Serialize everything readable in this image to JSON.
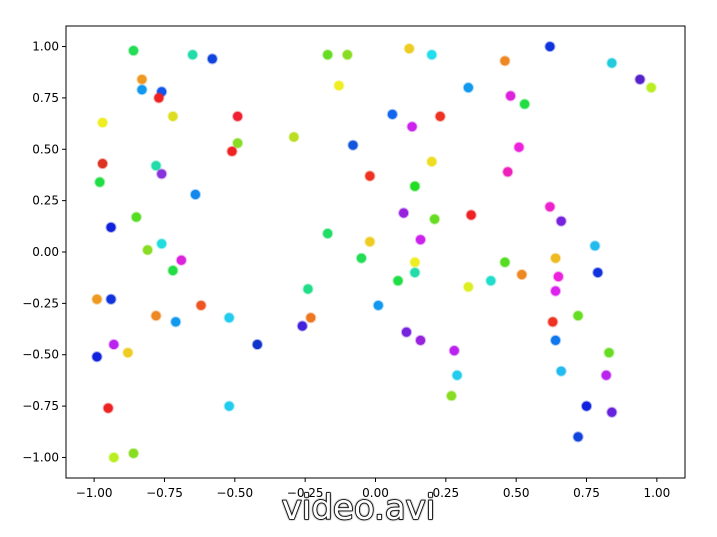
{
  "caption": "video.avi",
  "chart_data": {
    "type": "scatter",
    "title": "",
    "xlabel": "",
    "ylabel": "",
    "xlim": [
      -1.1,
      1.1
    ],
    "ylim": [
      -1.1,
      1.1
    ],
    "xticks": [
      "−1.00",
      "−0.75",
      "−0.50",
      "−0.25",
      "0.00",
      "0.25",
      "0.50",
      "0.75",
      "1.00"
    ],
    "yticks": [
      "−1.00",
      "−0.75",
      "−0.50",
      "−0.25",
      "0.00",
      "0.25",
      "0.50",
      "0.75",
      "1.00"
    ],
    "grid": false,
    "colormap": "hsv",
    "points": [
      {
        "x": -0.86,
        "y": 0.98,
        "color": "#22dd55"
      },
      {
        "x": -0.65,
        "y": 0.96,
        "color": "#22ddaa"
      },
      {
        "x": -0.58,
        "y": 0.94,
        "color": "#1144dd"
      },
      {
        "x": -0.83,
        "y": 0.84,
        "color": "#ee9922"
      },
      {
        "x": -0.83,
        "y": 0.79,
        "color": "#1199ee"
      },
      {
        "x": -0.76,
        "y": 0.78,
        "color": "#1155ee"
      },
      {
        "x": -0.77,
        "y": 0.75,
        "color": "#ee2222"
      },
      {
        "x": -0.97,
        "y": 0.63,
        "color": "#eeee22"
      },
      {
        "x": -0.72,
        "y": 0.66,
        "color": "#dddd22"
      },
      {
        "x": -0.49,
        "y": 0.66,
        "color": "#ee2233"
      },
      {
        "x": -0.49,
        "y": 0.53,
        "color": "#88dd22"
      },
      {
        "x": -0.51,
        "y": 0.49,
        "color": "#ee2222"
      },
      {
        "x": -0.97,
        "y": 0.43,
        "color": "#dd3322"
      },
      {
        "x": -0.78,
        "y": 0.42,
        "color": "#22ddaa"
      },
      {
        "x": -0.76,
        "y": 0.38,
        "color": "#8833dd"
      },
      {
        "x": -0.98,
        "y": 0.34,
        "color": "#22dd44"
      },
      {
        "x": -0.64,
        "y": 0.28,
        "color": "#1188ee"
      },
      {
        "x": -0.85,
        "y": 0.17,
        "color": "#55dd22"
      },
      {
        "x": -0.94,
        "y": 0.12,
        "color": "#1122dd"
      },
      {
        "x": -0.81,
        "y": 0.01,
        "color": "#88dd22"
      },
      {
        "x": -0.76,
        "y": 0.04,
        "color": "#22dddd"
      },
      {
        "x": -0.69,
        "y": -0.04,
        "color": "#dd22dd"
      },
      {
        "x": -0.72,
        "y": -0.09,
        "color": "#22dd44"
      },
      {
        "x": -0.99,
        "y": -0.23,
        "color": "#ee9922"
      },
      {
        "x": -0.94,
        "y": -0.23,
        "color": "#1133dd"
      },
      {
        "x": -0.62,
        "y": -0.26,
        "color": "#ee5522"
      },
      {
        "x": -0.78,
        "y": -0.31,
        "color": "#ee8822"
      },
      {
        "x": -0.71,
        "y": -0.34,
        "color": "#1199ee"
      },
      {
        "x": -0.52,
        "y": -0.32,
        "color": "#22ccee"
      },
      {
        "x": -0.93,
        "y": -0.45,
        "color": "#bb22ee"
      },
      {
        "x": -0.88,
        "y": -0.49,
        "color": "#eecc22"
      },
      {
        "x": -0.99,
        "y": -0.51,
        "color": "#1122dd"
      },
      {
        "x": -0.42,
        "y": -0.45,
        "color": "#1133cc"
      },
      {
        "x": -0.95,
        "y": -0.76,
        "color": "#ee2222"
      },
      {
        "x": -0.52,
        "y": -0.75,
        "color": "#22ccee"
      },
      {
        "x": -0.93,
        "y": -1.0,
        "color": "#bbee22"
      },
      {
        "x": -0.86,
        "y": -0.98,
        "color": "#88dd22"
      },
      {
        "x": -0.17,
        "y": 0.96,
        "color": "#66dd22"
      },
      {
        "x": -0.1,
        "y": 0.96,
        "color": "#88dd22"
      },
      {
        "x": -0.13,
        "y": 0.81,
        "color": "#eeee22"
      },
      {
        "x": -0.29,
        "y": 0.56,
        "color": "#bbdd22"
      },
      {
        "x": -0.08,
        "y": 0.52,
        "color": "#1155dd"
      },
      {
        "x": -0.02,
        "y": 0.37,
        "color": "#ee3322"
      },
      {
        "x": -0.17,
        "y": 0.09,
        "color": "#22dd66"
      },
      {
        "x": -0.02,
        "y": 0.05,
        "color": "#eecc22"
      },
      {
        "x": -0.05,
        "y": -0.03,
        "color": "#22dd55"
      },
      {
        "x": -0.24,
        "y": -0.18,
        "color": "#22dd88"
      },
      {
        "x": -0.23,
        "y": -0.32,
        "color": "#ee7722"
      },
      {
        "x": -0.26,
        "y": -0.36,
        "color": "#4422dd"
      },
      {
        "x": 0.01,
        "y": -0.26,
        "color": "#1199ee"
      },
      {
        "x": 0.12,
        "y": 0.99,
        "color": "#eecc22"
      },
      {
        "x": 0.2,
        "y": 0.96,
        "color": "#22ddee"
      },
      {
        "x": 0.33,
        "y": 0.8,
        "color": "#1199ee"
      },
      {
        "x": 0.46,
        "y": 0.93,
        "color": "#ee8822"
      },
      {
        "x": 0.62,
        "y": 1.0,
        "color": "#1133dd"
      },
      {
        "x": 0.84,
        "y": 0.92,
        "color": "#22ccdd"
      },
      {
        "x": 0.94,
        "y": 0.84,
        "color": "#5522cc"
      },
      {
        "x": 0.98,
        "y": 0.8,
        "color": "#bbee22"
      },
      {
        "x": 0.48,
        "y": 0.76,
        "color": "#dd22dd"
      },
      {
        "x": 0.53,
        "y": 0.72,
        "color": "#22dd44"
      },
      {
        "x": 0.06,
        "y": 0.67,
        "color": "#1166ee"
      },
      {
        "x": 0.23,
        "y": 0.66,
        "color": "#ee3322"
      },
      {
        "x": 0.13,
        "y": 0.61,
        "color": "#cc22ee"
      },
      {
        "x": 0.51,
        "y": 0.51,
        "color": "#ee22dd"
      },
      {
        "x": 0.2,
        "y": 0.44,
        "color": "#eedd22"
      },
      {
        "x": 0.47,
        "y": 0.39,
        "color": "#ee22bb"
      },
      {
        "x": 0.14,
        "y": 0.32,
        "color": "#22dd22"
      },
      {
        "x": 0.1,
        "y": 0.19,
        "color": "#9922dd"
      },
      {
        "x": 0.21,
        "y": 0.16,
        "color": "#66dd22"
      },
      {
        "x": 0.34,
        "y": 0.18,
        "color": "#ee2222"
      },
      {
        "x": 0.62,
        "y": 0.22,
        "color": "#ee22cc"
      },
      {
        "x": 0.66,
        "y": 0.15,
        "color": "#7722dd"
      },
      {
        "x": 0.16,
        "y": 0.06,
        "color": "#cc22ee"
      },
      {
        "x": 0.78,
        "y": 0.03,
        "color": "#22bbee"
      },
      {
        "x": 0.14,
        "y": -0.05,
        "color": "#eeee22"
      },
      {
        "x": 0.46,
        "y": -0.05,
        "color": "#55dd22"
      },
      {
        "x": 0.14,
        "y": -0.1,
        "color": "#22ddaa"
      },
      {
        "x": 0.64,
        "y": -0.03,
        "color": "#eebb22"
      },
      {
        "x": 0.08,
        "y": -0.14,
        "color": "#22dd44"
      },
      {
        "x": 0.52,
        "y": -0.11,
        "color": "#ee8822"
      },
      {
        "x": 0.65,
        "y": -0.12,
        "color": "#ee22dd"
      },
      {
        "x": 0.79,
        "y": -0.1,
        "color": "#1133dd"
      },
      {
        "x": 0.41,
        "y": -0.14,
        "color": "#22ddcc"
      },
      {
        "x": 0.33,
        "y": -0.17,
        "color": "#ddee22"
      },
      {
        "x": 0.64,
        "y": -0.19,
        "color": "#dd22ee"
      },
      {
        "x": 0.72,
        "y": -0.31,
        "color": "#66dd22"
      },
      {
        "x": 0.63,
        "y": -0.34,
        "color": "#ee3322"
      },
      {
        "x": 0.11,
        "y": -0.39,
        "color": "#7722dd"
      },
      {
        "x": 0.16,
        "y": -0.43,
        "color": "#9922dd"
      },
      {
        "x": 0.64,
        "y": -0.43,
        "color": "#1177ee"
      },
      {
        "x": 0.28,
        "y": -0.48,
        "color": "#bb22ee"
      },
      {
        "x": 0.83,
        "y": -0.49,
        "color": "#66dd22"
      },
      {
        "x": 0.29,
        "y": -0.6,
        "color": "#22ccee"
      },
      {
        "x": 0.66,
        "y": -0.58,
        "color": "#22bbee"
      },
      {
        "x": 0.82,
        "y": -0.6,
        "color": "#bb22ee"
      },
      {
        "x": 0.27,
        "y": -0.7,
        "color": "#88dd22"
      },
      {
        "x": 0.75,
        "y": -0.75,
        "color": "#1122dd"
      },
      {
        "x": 0.84,
        "y": -0.78,
        "color": "#6622dd"
      },
      {
        "x": 0.72,
        "y": -0.9,
        "color": "#1144dd"
      }
    ]
  }
}
